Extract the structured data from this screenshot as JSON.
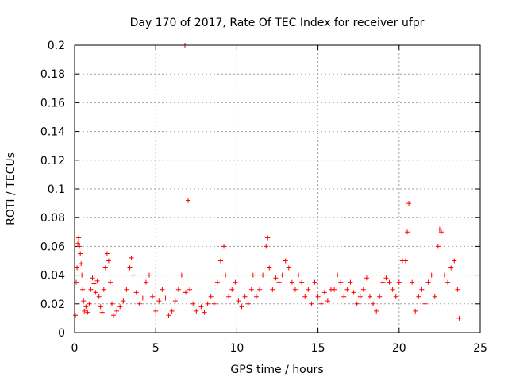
{
  "chart_data": {
    "type": "scatter",
    "title": "Day 170 of 2017, Rate Of TEC Index for receiver ufpr",
    "xlabel": "GPS time / hours",
    "ylabel": "ROTI / TECUs",
    "xlim": [
      0,
      25
    ],
    "ylim": [
      0,
      0.2
    ],
    "grid": true,
    "legend": "none",
    "marker": "+",
    "color": "#ff0000",
    "x_ticks": [
      {
        "value": 0,
        "label": "0"
      },
      {
        "value": 5,
        "label": "5"
      },
      {
        "value": 10,
        "label": "10"
      },
      {
        "value": 15,
        "label": "15"
      },
      {
        "value": 20,
        "label": "20"
      },
      {
        "value": 25,
        "label": "25"
      }
    ],
    "y_ticks": [
      {
        "value": 0,
        "label": "0"
      },
      {
        "value": 0.02,
        "label": "0.02"
      },
      {
        "value": 0.04,
        "label": "0.04"
      },
      {
        "value": 0.06,
        "label": "0.06"
      },
      {
        "value": 0.08,
        "label": "0.08"
      },
      {
        "value": 0.1,
        "label": "0.1"
      },
      {
        "value": 0.12,
        "label": "0.12"
      },
      {
        "value": 0.14,
        "label": "0.14"
      },
      {
        "value": 0.16,
        "label": "0.16"
      },
      {
        "value": 0.18,
        "label": "0.18"
      },
      {
        "value": 0.2,
        "label": "0.2"
      }
    ],
    "series": [
      {
        "name": "ROTI",
        "points": [
          [
            0.05,
            0.012
          ],
          [
            0.1,
            0.035
          ],
          [
            0.15,
            0.045
          ],
          [
            0.2,
            0.062
          ],
          [
            0.25,
            0.066
          ],
          [
            0.3,
            0.06
          ],
          [
            0.35,
            0.055
          ],
          [
            0.4,
            0.048
          ],
          [
            0.45,
            0.04
          ],
          [
            0.5,
            0.03
          ],
          [
            0.55,
            0.022
          ],
          [
            0.6,
            0.015
          ],
          [
            0.7,
            0.018
          ],
          [
            0.8,
            0.014
          ],
          [
            0.9,
            0.02
          ],
          [
            1.0,
            0.03
          ],
          [
            1.1,
            0.038
          ],
          [
            1.2,
            0.034
          ],
          [
            1.3,
            0.028
          ],
          [
            1.4,
            0.036
          ],
          [
            1.5,
            0.025
          ],
          [
            1.6,
            0.018
          ],
          [
            1.7,
            0.014
          ],
          [
            1.8,
            0.03
          ],
          [
            1.9,
            0.045
          ],
          [
            2.0,
            0.055
          ],
          [
            2.1,
            0.05
          ],
          [
            2.2,
            0.035
          ],
          [
            2.3,
            0.02
          ],
          [
            2.4,
            0.012
          ],
          [
            2.6,
            0.015
          ],
          [
            2.8,
            0.018
          ],
          [
            3.0,
            0.022
          ],
          [
            3.2,
            0.03
          ],
          [
            3.4,
            0.045
          ],
          [
            3.5,
            0.052
          ],
          [
            3.6,
            0.04
          ],
          [
            3.8,
            0.028
          ],
          [
            4.0,
            0.02
          ],
          [
            4.2,
            0.024
          ],
          [
            4.4,
            0.035
          ],
          [
            4.6,
            0.04
          ],
          [
            4.8,
            0.025
          ],
          [
            5.0,
            0.015
          ],
          [
            5.2,
            0.022
          ],
          [
            5.4,
            0.03
          ],
          [
            5.6,
            0.024
          ],
          [
            5.8,
            0.012
          ],
          [
            6.0,
            0.015
          ],
          [
            6.2,
            0.022
          ],
          [
            6.4,
            0.03
          ],
          [
            6.6,
            0.04
          ],
          [
            6.8,
            0.2
          ],
          [
            6.85,
            0.028
          ],
          [
            7.0,
            0.092
          ],
          [
            7.1,
            0.03
          ],
          [
            7.3,
            0.02
          ],
          [
            7.5,
            0.015
          ],
          [
            7.8,
            0.018
          ],
          [
            8.0,
            0.014
          ],
          [
            8.2,
            0.02
          ],
          [
            8.4,
            0.025
          ],
          [
            8.6,
            0.02
          ],
          [
            8.8,
            0.035
          ],
          [
            9.0,
            0.05
          ],
          [
            9.2,
            0.06
          ],
          [
            9.3,
            0.04
          ],
          [
            9.5,
            0.025
          ],
          [
            9.7,
            0.03
          ],
          [
            9.9,
            0.035
          ],
          [
            10.1,
            0.022
          ],
          [
            10.3,
            0.018
          ],
          [
            10.5,
            0.025
          ],
          [
            10.7,
            0.02
          ],
          [
            10.9,
            0.03
          ],
          [
            11.0,
            0.04
          ],
          [
            11.2,
            0.025
          ],
          [
            11.4,
            0.03
          ],
          [
            11.6,
            0.04
          ],
          [
            11.8,
            0.06
          ],
          [
            11.9,
            0.066
          ],
          [
            12.0,
            0.045
          ],
          [
            12.2,
            0.03
          ],
          [
            12.4,
            0.038
          ],
          [
            12.6,
            0.035
          ],
          [
            12.8,
            0.04
          ],
          [
            13.0,
            0.05
          ],
          [
            13.2,
            0.045
          ],
          [
            13.4,
            0.035
          ],
          [
            13.6,
            0.03
          ],
          [
            13.8,
            0.04
          ],
          [
            14.0,
            0.035
          ],
          [
            14.2,
            0.025
          ],
          [
            14.4,
            0.03
          ],
          [
            14.6,
            0.02
          ],
          [
            14.8,
            0.035
          ],
          [
            15.0,
            0.025
          ],
          [
            15.2,
            0.02
          ],
          [
            15.4,
            0.028
          ],
          [
            15.6,
            0.022
          ],
          [
            15.8,
            0.03
          ],
          [
            16.0,
            0.03
          ],
          [
            16.2,
            0.04
          ],
          [
            16.4,
            0.035
          ],
          [
            16.6,
            0.025
          ],
          [
            16.8,
            0.03
          ],
          [
            17.0,
            0.035
          ],
          [
            17.2,
            0.028
          ],
          [
            17.4,
            0.02
          ],
          [
            17.6,
            0.025
          ],
          [
            17.8,
            0.03
          ],
          [
            18.0,
            0.038
          ],
          [
            18.2,
            0.025
          ],
          [
            18.4,
            0.02
          ],
          [
            18.6,
            0.015
          ],
          [
            18.8,
            0.025
          ],
          [
            19.0,
            0.035
          ],
          [
            19.2,
            0.038
          ],
          [
            19.4,
            0.035
          ],
          [
            19.6,
            0.03
          ],
          [
            19.8,
            0.025
          ],
          [
            20.0,
            0.035
          ],
          [
            20.2,
            0.05
          ],
          [
            20.4,
            0.05
          ],
          [
            20.5,
            0.07
          ],
          [
            20.6,
            0.09
          ],
          [
            20.8,
            0.035
          ],
          [
            21.0,
            0.015
          ],
          [
            21.2,
            0.025
          ],
          [
            21.4,
            0.03
          ],
          [
            21.6,
            0.02
          ],
          [
            21.8,
            0.035
          ],
          [
            22.0,
            0.04
          ],
          [
            22.2,
            0.025
          ],
          [
            22.4,
            0.06
          ],
          [
            22.5,
            0.072
          ],
          [
            22.6,
            0.07
          ],
          [
            22.8,
            0.04
          ],
          [
            23.0,
            0.035
          ],
          [
            23.2,
            0.045
          ],
          [
            23.4,
            0.05
          ],
          [
            23.6,
            0.03
          ],
          [
            23.7,
            0.01
          ]
        ]
      }
    ]
  }
}
